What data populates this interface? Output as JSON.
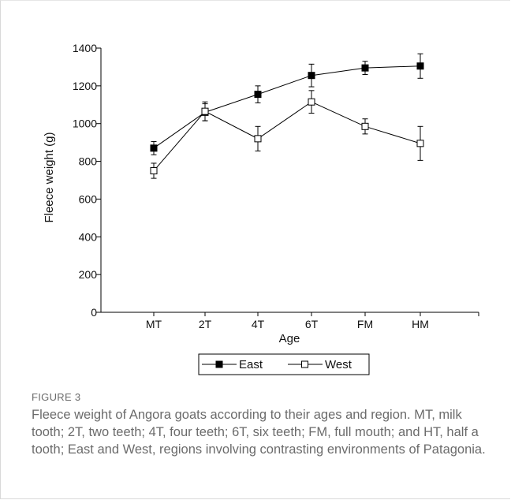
{
  "chart_data": {
    "type": "line",
    "xlabel": "Age",
    "ylabel": "Fleece weight (g)",
    "categories": [
      "MT",
      "2T",
      "4T",
      "6T",
      "FM",
      "HM"
    ],
    "ylim": [
      0,
      1400
    ],
    "yticks": [
      0,
      200,
      400,
      600,
      800,
      1000,
      1200,
      1400
    ],
    "grid": false,
    "legend_position": "bottom",
    "series": [
      {
        "name": "East",
        "marker": "filled-square",
        "color": "#000000",
        "values": [
          870,
          1060,
          1155,
          1255,
          1295,
          1305
        ],
        "error": [
          35,
          45,
          45,
          60,
          35,
          65
        ]
      },
      {
        "name": "West",
        "marker": "open-square",
        "color": "#000000",
        "values": [
          750,
          1065,
          920,
          1115,
          985,
          895
        ],
        "error": [
          40,
          50,
          65,
          60,
          40,
          90
        ]
      }
    ]
  },
  "figure": {
    "label": "FIGURE 3",
    "caption": "Fleece weight of Angora goats according to their ages and region. MT, milk tooth; 2T, two teeth; 4T, four teeth; 6T, six teeth; FM, full mouth; and HT, half a tooth; East and West, regions involving contrasting environments of Patagonia."
  }
}
